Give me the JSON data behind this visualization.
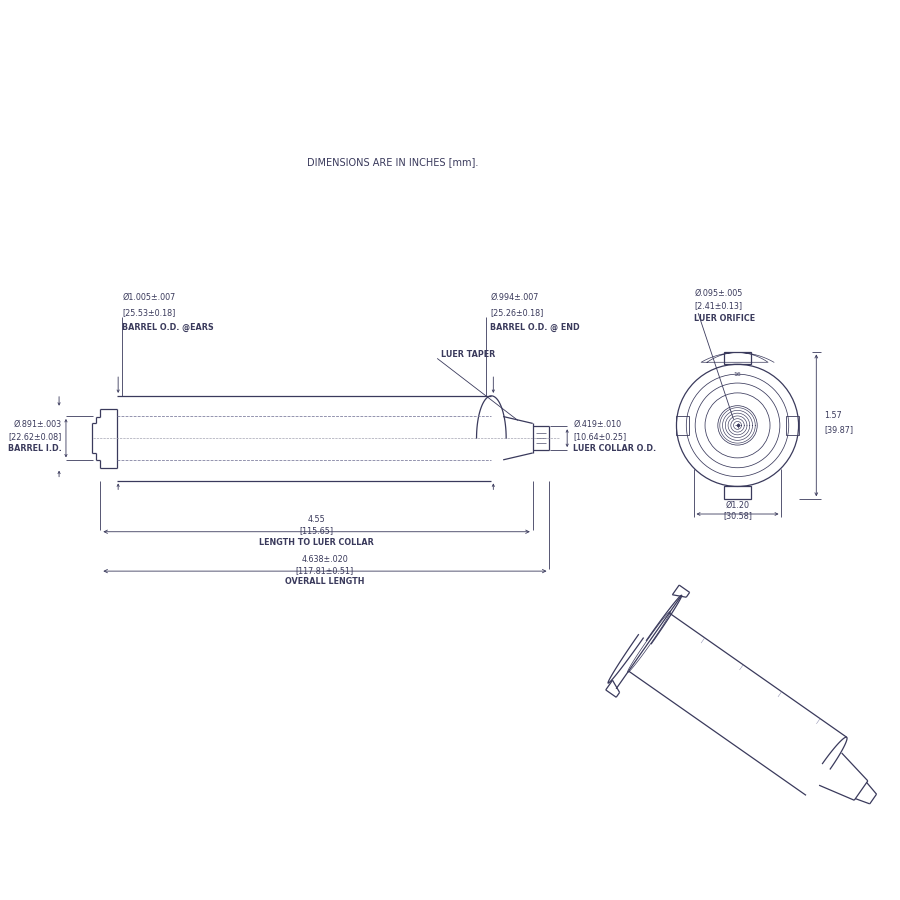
{
  "bg_color": "#ffffff",
  "line_color": "#3a3a5c",
  "dim_color": "#3a3a5c",
  "title_note": "DIMENSIONS ARE IN INCHES [mm].",
  "dims": {
    "barrel_od_ears_in": "Ø1.005±.007",
    "barrel_od_ears_mm": "[25.53±0.18]",
    "barrel_od_ears_label": "BARREL O.D. @EARS",
    "barrel_od_end_in": "Ø.994±.007",
    "barrel_od_end_mm": "[25.26±0.18]",
    "barrel_od_end_label": "BARREL O.D. @ END",
    "barrel_id_in": "Ø.891±.003",
    "barrel_id_mm": "[22.62±0.08]",
    "barrel_id_label": "BARREL I.D.",
    "luer_orifice_in": "Ø.095±.005",
    "luer_orifice_mm": "[2.41±0.13]",
    "luer_orifice_label": "LUER ORIFICE",
    "luer_collar_in": "Ø.419±.010",
    "luer_collar_mm": "[10.64±0.25]",
    "luer_collar_label": "LUER COLLAR O.D.",
    "luer_taper_label": "LUER TAPER",
    "length_luer_in": "4.55",
    "length_luer_mm": "[115.65]",
    "length_luer_label": "LENGTH TO LUER COLLAR",
    "overall_length_in": "4.638±.020",
    "overall_length_mm": "[117.81±0.51]",
    "overall_length_label": "OVERALL LENGTH",
    "front_od_in": "Ø1.20",
    "front_od_mm": "[30.58]",
    "front_height_in": "1.57",
    "front_height_mm": "[39.87]"
  }
}
